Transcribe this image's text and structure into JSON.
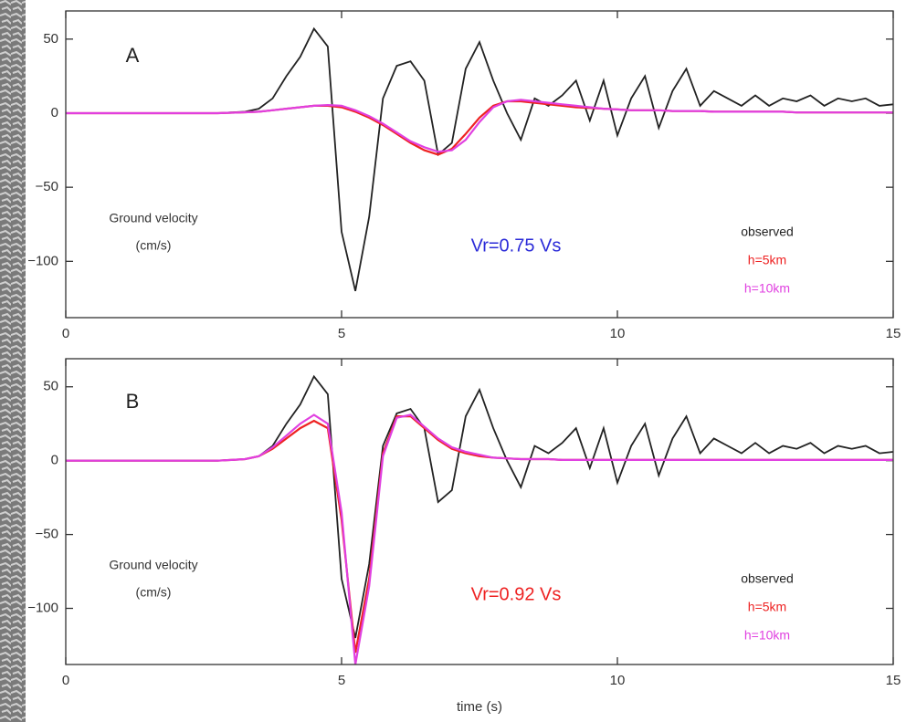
{
  "chart_data": [
    {
      "type": "line",
      "panel_label": "A",
      "label_lines": [
        "Ground velocity",
        "(cm/s)"
      ],
      "annotation": "Vr=0.75 Vs",
      "annotation_color": "#2b2bd8",
      "xlim": [
        0,
        15
      ],
      "ylim": [
        -138,
        69
      ],
      "xticks": [
        0,
        5,
        10,
        15
      ],
      "yticks": [
        {
          "value": -100,
          "label": "−100"
        },
        {
          "value": -50,
          "label": "−50"
        },
        0,
        50
      ],
      "x": [
        0,
        0.25,
        0.5,
        0.75,
        1,
        1.25,
        1.5,
        1.75,
        2,
        2.25,
        2.5,
        2.75,
        3,
        3.25,
        3.5,
        3.75,
        4,
        4.25,
        4.5,
        4.75,
        5,
        5.25,
        5.5,
        5.75,
        6,
        6.25,
        6.5,
        6.75,
        7,
        7.25,
        7.5,
        7.75,
        8,
        8.25,
        8.5,
        8.75,
        9,
        9.25,
        9.5,
        9.75,
        10,
        10.25,
        10.5,
        10.75,
        11,
        11.25,
        11.5,
        11.75,
        12,
        12.25,
        12.5,
        12.75,
        13,
        13.25,
        13.5,
        13.75,
        14,
        14.25,
        14.5,
        14.75,
        15
      ],
      "series": [
        {
          "name": "observed",
          "color": "#222222",
          "values": [
            0,
            0,
            0,
            0,
            0,
            0,
            0,
            0,
            0,
            0,
            0,
            0,
            0.5,
            1,
            3,
            10,
            25,
            38,
            57,
            45,
            -80,
            -120,
            -70,
            10,
            32,
            35,
            22,
            -28,
            -20,
            30,
            48,
            22,
            0,
            -18,
            10,
            5,
            12,
            22,
            -5,
            22,
            -15,
            10,
            25,
            -10,
            15,
            30,
            5,
            15,
            10,
            5,
            12,
            5,
            10,
            8,
            12,
            5,
            10,
            8,
            10,
            5,
            6
          ]
        },
        {
          "name": "h=5km",
          "color": "#ee2222",
          "values": [
            0,
            0,
            0,
            0,
            0,
            0,
            0,
            0,
            0,
            0,
            0,
            0,
            0.3,
            0.6,
            1,
            2,
            3,
            4,
            5,
            5,
            4,
            1,
            -3,
            -8,
            -14,
            -20,
            -25,
            -28,
            -24,
            -14,
            -3,
            5,
            8,
            8,
            7,
            6,
            5,
            4,
            3.5,
            3,
            2.5,
            2,
            2,
            2,
            1.5,
            1.5,
            1.5,
            1,
            1,
            1,
            1,
            1,
            1,
            0.5,
            0.5,
            0.5,
            0.5,
            0.5,
            0.5,
            0.5,
            0.5
          ]
        },
        {
          "name": "h=10km",
          "color": "#e040e0",
          "values": [
            0,
            0,
            0,
            0,
            0,
            0,
            0,
            0,
            0,
            0,
            0,
            0,
            0.3,
            0.6,
            1,
            2,
            3,
            4,
            5,
            5.5,
            5,
            2,
            -2,
            -7,
            -13,
            -19,
            -23,
            -26,
            -25,
            -18,
            -6,
            4,
            8,
            9,
            8,
            7,
            6,
            5,
            4,
            3,
            2.5,
            2,
            2,
            2,
            1.5,
            1.5,
            1.5,
            1,
            1,
            1,
            1,
            1,
            1,
            0.5,
            0.5,
            0.5,
            0.5,
            0.5,
            0.5,
            0.5,
            0.5
          ]
        }
      ]
    },
    {
      "type": "line",
      "panel_label": "B",
      "label_lines": [
        "Ground velocity",
        "(cm/s)"
      ],
      "annotation": "Vr=0.92 Vs",
      "annotation_color": "#ee2222",
      "xlabel": "time (s)",
      "xlim": [
        0,
        15
      ],
      "ylim": [
        -138,
        69
      ],
      "xticks": [
        0,
        5,
        10,
        15
      ],
      "yticks": [
        {
          "value": -100,
          "label": "−100"
        },
        {
          "value": -50,
          "label": "−50"
        },
        0,
        50
      ],
      "x": [
        0,
        0.25,
        0.5,
        0.75,
        1,
        1.25,
        1.5,
        1.75,
        2,
        2.25,
        2.5,
        2.75,
        3,
        3.25,
        3.5,
        3.75,
        4,
        4.25,
        4.5,
        4.75,
        5,
        5.25,
        5.5,
        5.75,
        6,
        6.25,
        6.5,
        6.75,
        7,
        7.25,
        7.5,
        7.75,
        8,
        8.25,
        8.5,
        8.75,
        9,
        9.25,
        9.5,
        9.75,
        10,
        10.25,
        10.5,
        10.75,
        11,
        11.25,
        11.5,
        11.75,
        12,
        12.25,
        12.5,
        12.75,
        13,
        13.25,
        13.5,
        13.75,
        14,
        14.25,
        14.5,
        14.75,
        15
      ],
      "series": [
        {
          "name": "observed",
          "color": "#222222",
          "values": [
            0,
            0,
            0,
            0,
            0,
            0,
            0,
            0,
            0,
            0,
            0,
            0,
            0.5,
            1,
            3,
            10,
            25,
            38,
            57,
            45,
            -80,
            -120,
            -70,
            10,
            32,
            35,
            22,
            -28,
            -20,
            30,
            48,
            22,
            0,
            -18,
            10,
            5,
            12,
            22,
            -5,
            22,
            -15,
            10,
            25,
            -10,
            15,
            30,
            5,
            15,
            10,
            5,
            12,
            5,
            10,
            8,
            12,
            5,
            10,
            8,
            10,
            5,
            6
          ]
        },
        {
          "name": "h=5km",
          "color": "#ee2222",
          "values": [
            0,
            0,
            0,
            0,
            0,
            0,
            0,
            0,
            0,
            0,
            0,
            0,
            0.5,
            1,
            3,
            8,
            15,
            22,
            27,
            22,
            -40,
            -130,
            -80,
            5,
            30,
            30,
            22,
            14,
            8,
            5,
            3,
            2,
            1.5,
            1,
            1,
            1,
            0.5,
            0.5,
            0.5,
            0.5,
            0.5,
            0.5,
            0.5,
            0.5,
            0.5,
            0.5,
            0.5,
            0.5,
            0.5,
            0.5,
            0.5,
            0.5,
            0.5,
            0.5,
            0.5,
            0.5,
            0.5,
            0.5,
            0.5,
            0.5,
            0.5
          ]
        },
        {
          "name": "h=10km",
          "color": "#e040e0",
          "values": [
            0,
            0,
            0,
            0,
            0,
            0,
            0,
            0,
            0,
            0,
            0,
            0,
            0.5,
            1,
            3,
            9,
            17,
            25,
            31,
            25,
            -35,
            -138,
            -85,
            3,
            29,
            31,
            23,
            15,
            9,
            6,
            4,
            2,
            1.5,
            1,
            1,
            1,
            0.5,
            0.5,
            0.5,
            0.5,
            0.5,
            0.5,
            0.5,
            0.5,
            0.5,
            0.5,
            0.5,
            0.5,
            0.5,
            0.5,
            0.5,
            0.5,
            0.5,
            0.5,
            0.5,
            0.5,
            0.5,
            0.5,
            0.5,
            0.5,
            0.5
          ]
        }
      ]
    }
  ]
}
